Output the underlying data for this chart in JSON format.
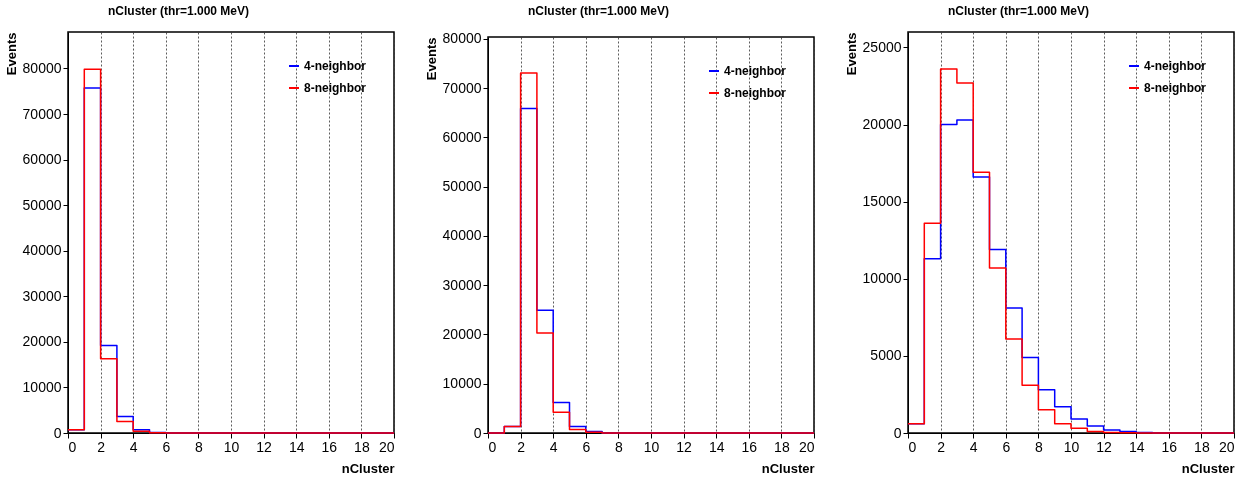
{
  "chart_data": [
    {
      "type": "histogram",
      "title": "nCluster (thr=1.000 MeV)",
      "xlabel": "nCluster",
      "ylabel": "Events",
      "bins": [
        0,
        1,
        2,
        3,
        4,
        5,
        6,
        7,
        8,
        9,
        10,
        11,
        12,
        13,
        14,
        15,
        16,
        17,
        18,
        19,
        20
      ],
      "series": [
        {
          "name": "4-neighbor",
          "color": "#0000ff",
          "values": [
            700,
            75700,
            19200,
            3600,
            700,
            100,
            0,
            0,
            0,
            0,
            0,
            0,
            0,
            0,
            0,
            0,
            0,
            0,
            0,
            0
          ]
        },
        {
          "name": "8-neighbor",
          "color": "#ff0000",
          "values": [
            700,
            79800,
            16300,
            2500,
            400,
            50,
            0,
            0,
            0,
            0,
            0,
            0,
            0,
            0,
            0,
            0,
            0,
            0,
            0,
            0
          ]
        }
      ],
      "xlim": [
        0,
        20
      ],
      "xticks": [
        0,
        2,
        4,
        6,
        8,
        10,
        12,
        14,
        16,
        18,
        20
      ],
      "ylim": [
        0,
        88000
      ],
      "yticks": [
        0,
        10000,
        20000,
        30000,
        40000,
        50000,
        60000,
        70000,
        80000
      ],
      "grid": "x",
      "legend": "top right"
    },
    {
      "type": "histogram",
      "title": "nCluster (thr=1.000 MeV)",
      "xlabel": "nCluster",
      "ylabel": "Events",
      "bins": [
        0,
        1,
        2,
        3,
        4,
        5,
        6,
        7,
        8,
        9,
        10,
        11,
        12,
        13,
        14,
        15,
        16,
        17,
        18,
        19,
        20
      ],
      "series": [
        {
          "name": "4-neighbor",
          "color": "#0000ff",
          "values": [
            0,
            1300,
            65900,
            24900,
            6200,
            1300,
            300,
            0,
            0,
            0,
            0,
            0,
            0,
            0,
            0,
            0,
            0,
            0,
            0,
            0
          ]
        },
        {
          "name": "8-neighbor",
          "color": "#ff0000",
          "values": [
            0,
            1300,
            73100,
            20300,
            4200,
            700,
            150,
            0,
            0,
            0,
            0,
            0,
            0,
            0,
            0,
            0,
            0,
            0,
            0,
            0
          ]
        }
      ],
      "xlim": [
        0,
        20
      ],
      "xticks": [
        0,
        2,
        4,
        6,
        8,
        10,
        12,
        14,
        16,
        18,
        20
      ],
      "ylim": [
        0,
        80400
      ],
      "yticks": [
        0,
        10000,
        20000,
        30000,
        40000,
        50000,
        60000,
        70000,
        80000
      ],
      "grid": "x",
      "legend": "top right"
    },
    {
      "type": "histogram",
      "title": "nCluster (thr=1.000 MeV)",
      "xlabel": "nCluster",
      "ylabel": "Events",
      "bins": [
        0,
        1,
        2,
        3,
        4,
        5,
        6,
        7,
        8,
        9,
        10,
        11,
        12,
        13,
        14,
        15,
        16,
        17,
        18,
        19,
        20
      ],
      "series": [
        {
          "name": "4-neighbor",
          "color": "#0000ff",
          "values": [
            600,
            11300,
            20000,
            20300,
            16600,
            11900,
            8100,
            4900,
            2800,
            1700,
            900,
            450,
            200,
            100,
            30,
            0,
            0,
            0,
            0,
            0
          ]
        },
        {
          "name": "8-neighbor",
          "color": "#ff0000",
          "values": [
            600,
            13600,
            23600,
            22700,
            16900,
            10700,
            6100,
            3100,
            1500,
            600,
            300,
            100,
            30,
            10,
            0,
            0,
            0,
            0,
            0,
            0
          ]
        }
      ],
      "xlim": [
        0,
        20
      ],
      "xticks": [
        0,
        2,
        4,
        6,
        8,
        10,
        12,
        14,
        16,
        18,
        20
      ],
      "ylim": [
        0,
        26000
      ],
      "yticks": [
        0,
        5000,
        10000,
        15000,
        20000,
        25000
      ],
      "grid": "x",
      "legend": "top right"
    }
  ]
}
